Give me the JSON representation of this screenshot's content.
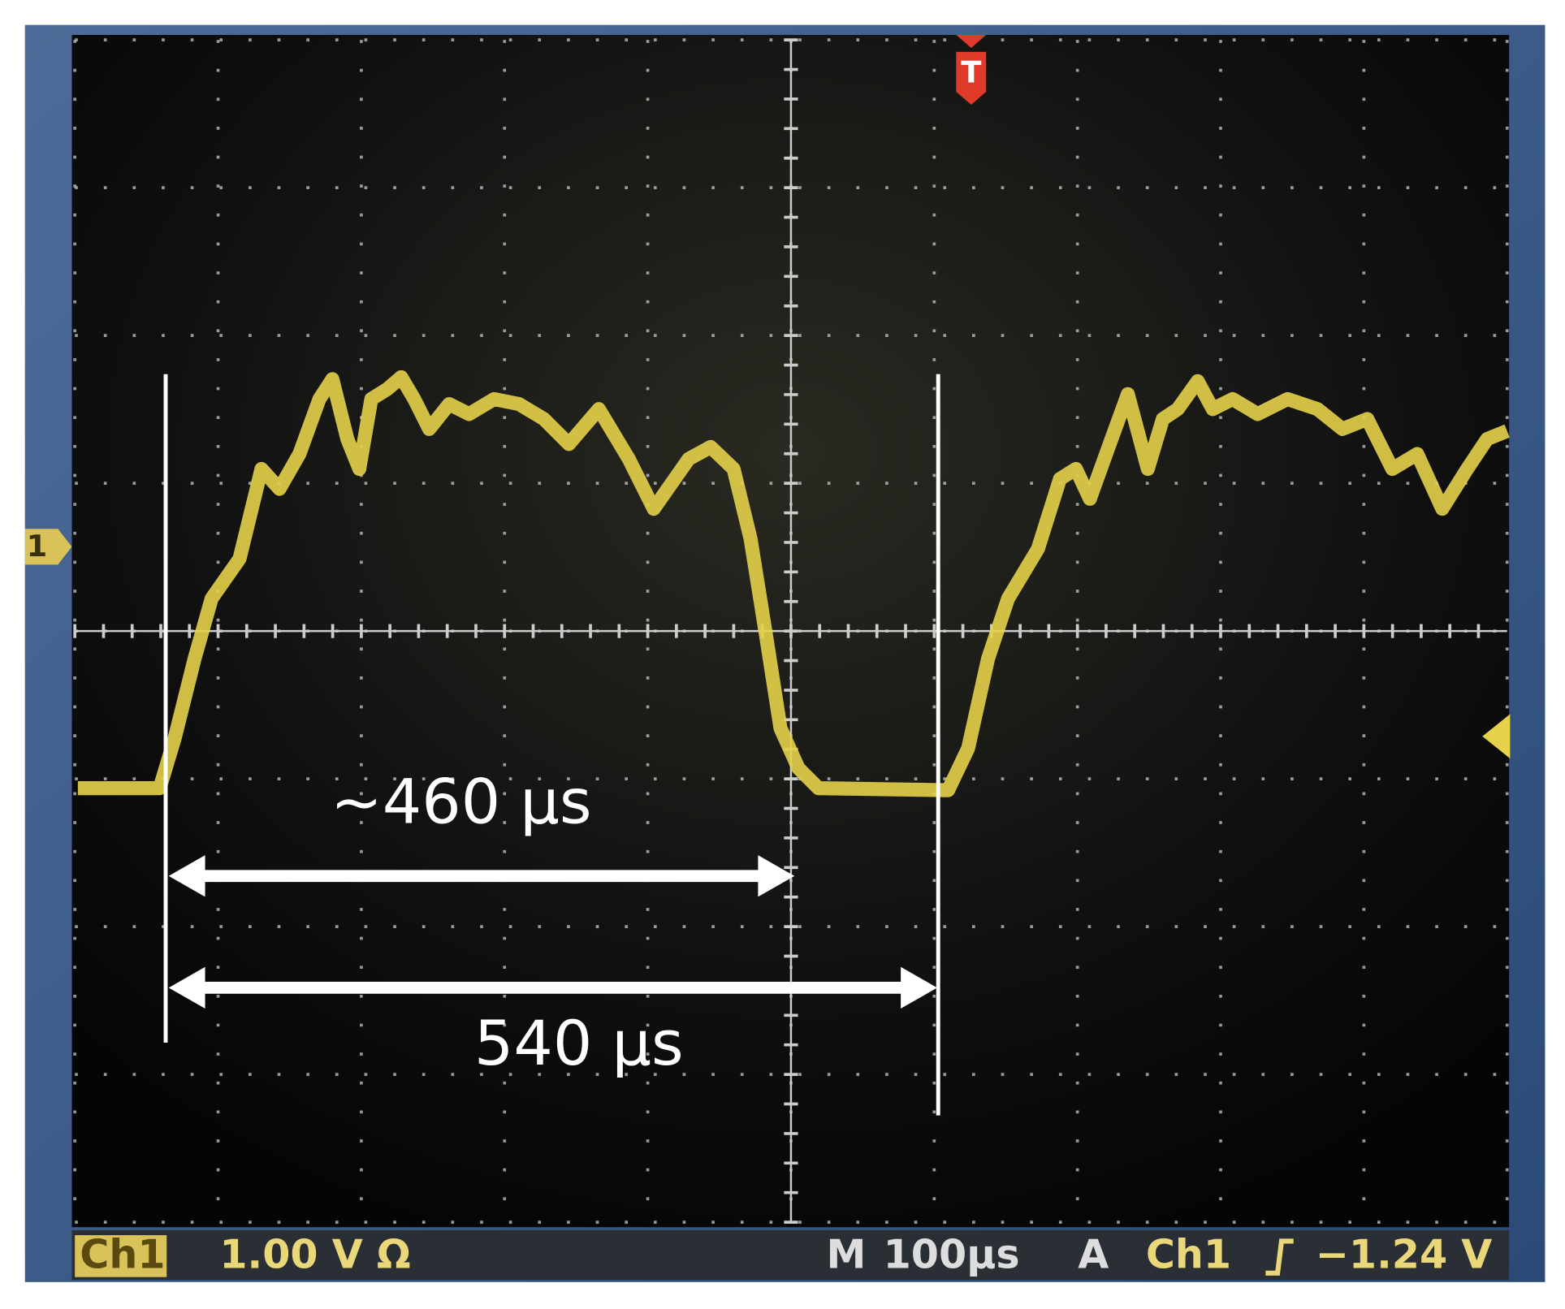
{
  "screen": {
    "markers": {
      "trigger": "T",
      "channel": "1"
    },
    "annotations": [
      {
        "label": "~460 µs"
      },
      {
        "label": "540 µs"
      }
    ],
    "status_bar": {
      "channel": "Ch1",
      "scale": "1.00 V Ω",
      "mode": "M",
      "timebase": "100µs",
      "trigger_mode": "A",
      "trigger_source": "Ch1",
      "trigger_level": "−1.24 V"
    }
  }
}
